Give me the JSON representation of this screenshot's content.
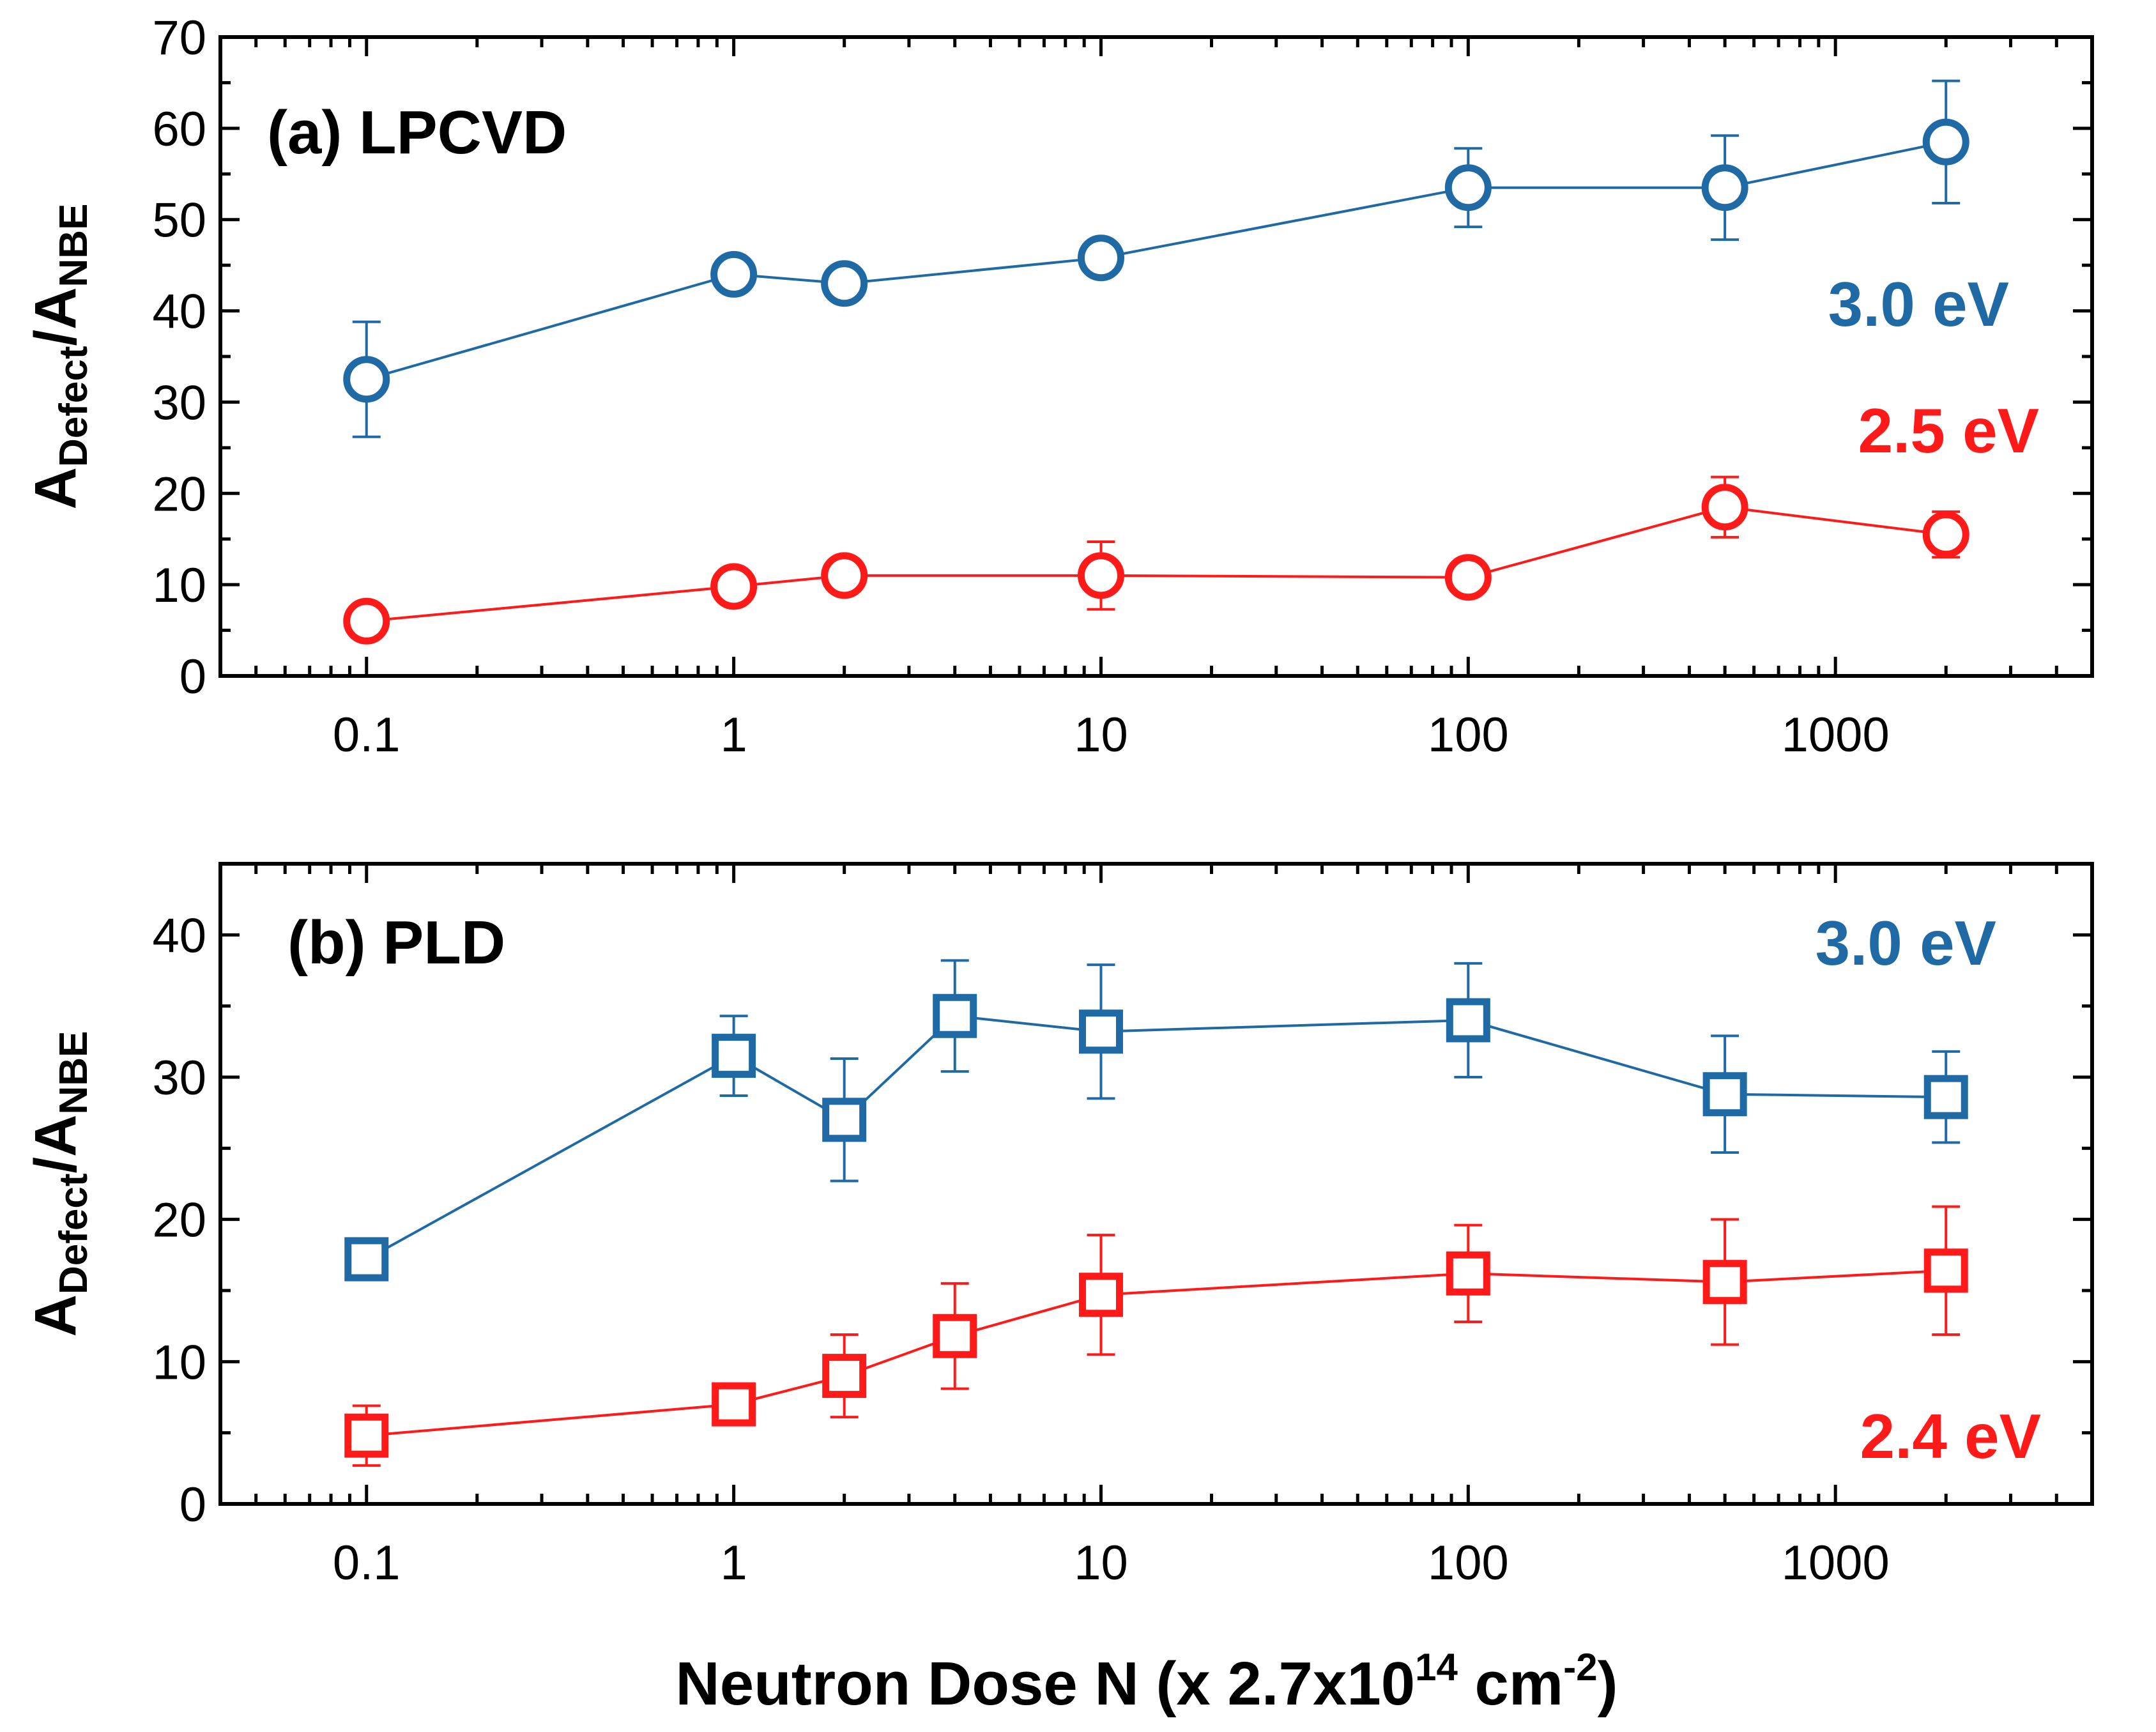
{
  "chart_data": [
    {
      "type": "line",
      "panel_label": "(a) LPCVD",
      "ylabel": {
        "main": "A",
        "sub1": "Defect",
        "sep": "/A",
        "sub2": "NBE"
      },
      "xscale": "log",
      "xlim": [
        0.04,
        5000
      ],
      "ylim": [
        0,
        70
      ],
      "xticks": [
        0.1,
        1,
        10,
        100,
        1000
      ],
      "xtick_labels": [
        "0.1",
        "1",
        "10",
        "100",
        "1000"
      ],
      "yticks": [
        0,
        10,
        20,
        30,
        40,
        50,
        60,
        70
      ],
      "ytick_labels": [
        "0",
        "10",
        "20",
        "30",
        "40",
        "50",
        "60",
        "70"
      ],
      "marker": "circle",
      "series": [
        {
          "name": "3.0 eV",
          "color": "#1f6aa5",
          "x": [
            0.1,
            1,
            2,
            10,
            100,
            500,
            2000
          ],
          "y": [
            32.5,
            44,
            43,
            45.8,
            53.5,
            53.5,
            58.5
          ],
          "err": [
            6.3,
            0,
            0,
            0,
            4.3,
            5.7,
            6.7
          ]
        },
        {
          "name": "2.5 eV",
          "color": "#ff1a1a",
          "x": [
            0.1,
            1,
            2,
            10,
            100,
            500,
            2000
          ],
          "y": [
            6,
            9.8,
            11,
            11,
            10.8,
            18.5,
            15.5
          ],
          "err": [
            0,
            0,
            0,
            3.7,
            0,
            3.3,
            2.5
          ]
        }
      ]
    },
    {
      "type": "line",
      "panel_label": "(b) PLD",
      "ylabel": {
        "main": "A",
        "sub1": "Defect",
        "sep": "/A",
        "sub2": "NBE"
      },
      "xscale": "log",
      "xlim": [
        0.04,
        5000
      ],
      "ylim": [
        0,
        45
      ],
      "xticks": [
        0.1,
        1,
        10,
        100,
        1000
      ],
      "xtick_labels": [
        "0.1",
        "1",
        "10",
        "100",
        "1000"
      ],
      "yticks": [
        0,
        10,
        20,
        30,
        40
      ],
      "ytick_labels": [
        "0",
        "10",
        "20",
        "30",
        "40"
      ],
      "marker": "square",
      "series": [
        {
          "name": "3.0 eV",
          "color": "#1f6aa5",
          "x": [
            0.1,
            1,
            2,
            4,
            10,
            100,
            500,
            2000
          ],
          "y": [
            17.2,
            31.5,
            27,
            34.3,
            33.2,
            34,
            28.8,
            28.6
          ],
          "err": [
            0,
            2.8,
            4.3,
            3.9,
            4.7,
            4,
            4.1,
            3.2
          ]
        },
        {
          "name": "2.4 eV",
          "color": "#ff1a1a",
          "x": [
            0.1,
            1,
            2,
            4,
            10,
            100,
            500,
            2000
          ],
          "y": [
            4.8,
            7,
            9,
            11.8,
            14.7,
            16.2,
            15.6,
            16.4
          ],
          "err": [
            2.1,
            0,
            2.9,
            3.7,
            4.2,
            3.4,
            4.4,
            4.5
          ]
        }
      ]
    }
  ],
  "xaxis_title": {
    "text": "Neutron Dose N (x 2.7x10",
    "sup1": "14",
    "mid": " cm",
    "sup2": "-2",
    "end": ")"
  }
}
